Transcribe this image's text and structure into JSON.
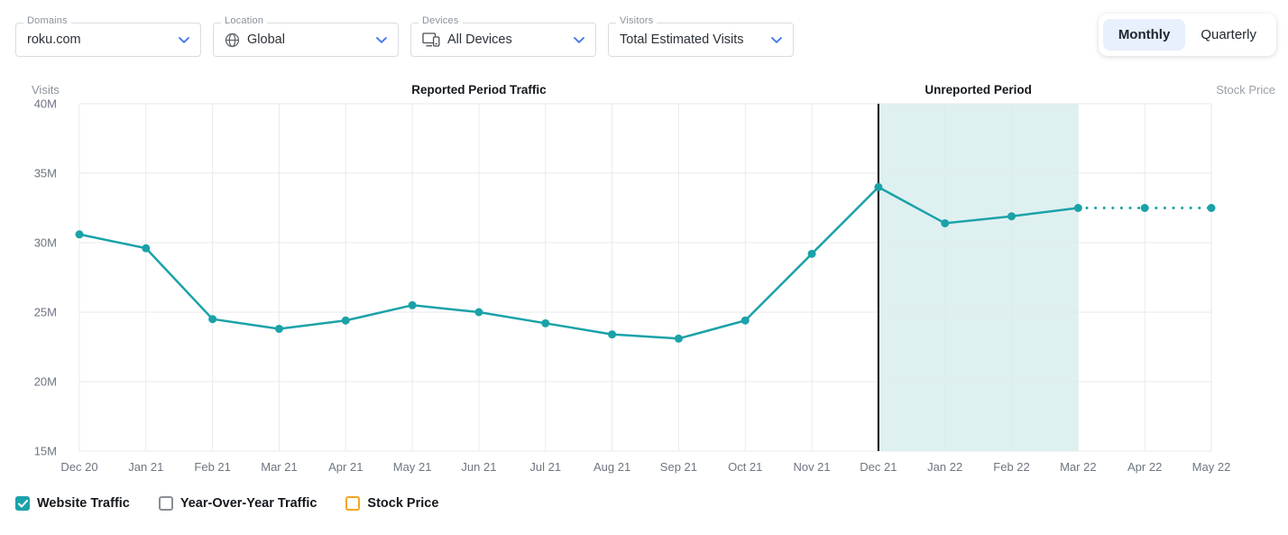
{
  "filters": [
    {
      "label": "Domains",
      "value": "roku.com"
    },
    {
      "label": "Location",
      "value": "Global",
      "icon": "globe-icon"
    },
    {
      "label": "Devices",
      "value": "All Devices",
      "icon": "devices-icon"
    },
    {
      "label": "Visitors",
      "value": "Total Estimated Visits"
    }
  ],
  "period_toggle": {
    "options": [
      "Monthly",
      "Quarterly"
    ],
    "selected": "Monthly"
  },
  "chart_data": {
    "type": "line",
    "title_left": "Reported Period Traffic",
    "title_right": "Unreported Period",
    "y_axis_label": "Visits",
    "right_axis_label": "Stock Price",
    "unit": "M",
    "ylim_m": [
      15,
      40
    ],
    "y_tick_step_m": 5,
    "y_tick_labels": [
      "40M",
      "35M",
      "30M",
      "25M",
      "20M",
      "15M"
    ],
    "categories": [
      "Dec 20",
      "Jan 21",
      "Feb 21",
      "Mar 21",
      "Apr 21",
      "May 21",
      "Jun 21",
      "Jul 21",
      "Aug 21",
      "Sep 21",
      "Oct 21",
      "Nov 21",
      "Dec 21",
      "Jan 22",
      "Feb 22",
      "Mar 22",
      "Apr 22",
      "May 22"
    ],
    "series": [
      {
        "name": "Website Traffic",
        "color": "#1aa2a8",
        "values_m": [
          30.6,
          29.6,
          24.5,
          23.8,
          24.4,
          25.5,
          25.0,
          24.2,
          23.4,
          23.1,
          24.4,
          29.2,
          34.0,
          31.4,
          31.9,
          32.5,
          32.5,
          32.5
        ]
      }
    ],
    "dotted_from_index": 15,
    "unreported_start_index": 12,
    "unreported_end_index": 15,
    "unreported_fill": "#d9edee",
    "separator_color": "#111111",
    "grid_color": "#e8eaee",
    "grid": true,
    "legend_position": "bottom-left"
  },
  "legend": [
    {
      "label": "Website Traffic",
      "checked": true,
      "color": "#1aa2a8"
    },
    {
      "label": "Year-Over-Year Traffic",
      "checked": false,
      "color": "#878e96"
    },
    {
      "label": "Stock Price",
      "checked": false,
      "color": "#f5a623"
    }
  ],
  "colors": {
    "chevron_blue": "#3e74e8",
    "toggle_selected_bg": "#e7f0fc",
    "series_teal": "#1aa2a8",
    "unreported_fill": "#d9edee",
    "stock_price_orange": "#f5a623"
  }
}
